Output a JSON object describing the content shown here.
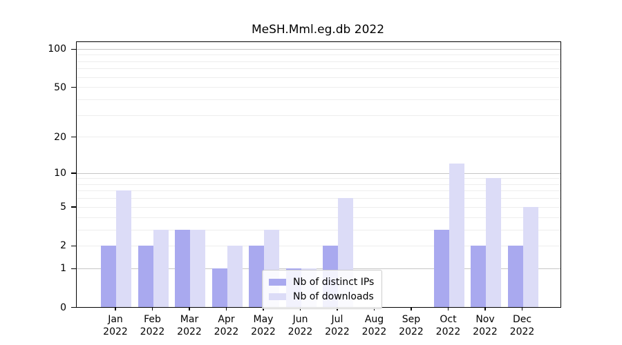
{
  "title": "MeSH.Mml.eg.db 2022",
  "chart_data": {
    "type": "bar",
    "title": "MeSH.Mml.eg.db 2022",
    "xlabel": "",
    "ylabel": "",
    "categories": [
      "Jan",
      "Feb",
      "Mar",
      "Apr",
      "May",
      "Jun",
      "Jul",
      "Aug",
      "Sep",
      "Oct",
      "Nov",
      "Dec"
    ],
    "year_label": "2022",
    "series": [
      {
        "name": "Nb of distinct IPs",
        "color": "#a9a9ef",
        "values": [
          2,
          2,
          3,
          1,
          2,
          1,
          2,
          0,
          0,
          3,
          2,
          2
        ]
      },
      {
        "name": "Nb of downloads",
        "color": "#dcdcf7",
        "values": [
          7,
          3,
          3,
          2,
          3,
          1,
          6,
          0,
          0,
          12,
          9,
          5
        ]
      }
    ],
    "yscale": "log1p",
    "ylim": [
      0,
      100
    ],
    "yticks": [
      0,
      1,
      2,
      5,
      10,
      20,
      50,
      100
    ],
    "major_gridlines": [
      1,
      10,
      100
    ],
    "minor_gridlines": [
      2,
      3,
      4,
      5,
      6,
      7,
      8,
      9,
      20,
      30,
      40,
      50,
      60,
      70,
      80,
      90
    ],
    "grid": true,
    "legend_position": "lower center"
  }
}
